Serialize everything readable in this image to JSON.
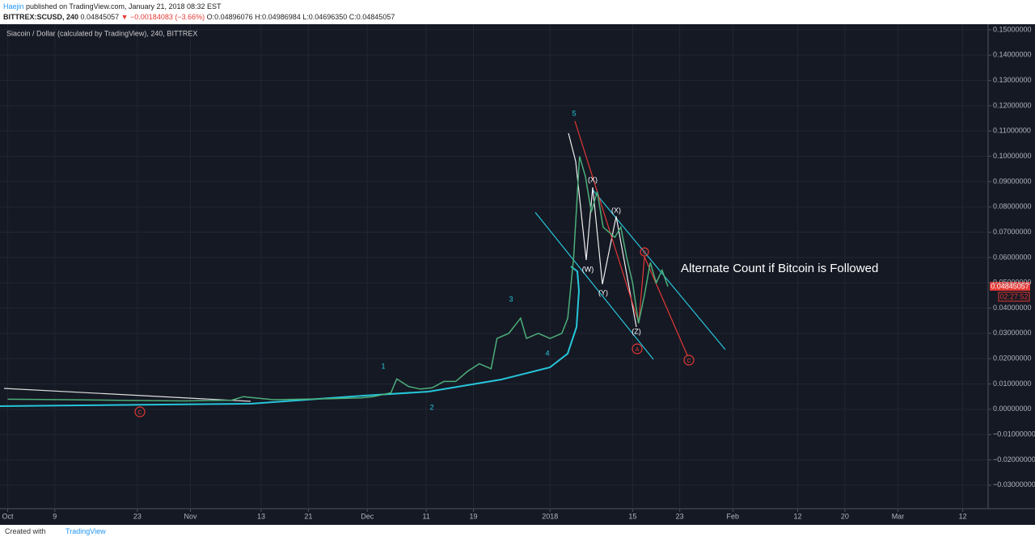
{
  "header": {
    "author": "Haejin",
    "published": "published on TradingView.com, January 21, 2018 08:32 EST",
    "symbol": "BITTREX:SCUSD, 240",
    "price": "0.04845057",
    "change": "▼ −0.00184083 (−3.66%)",
    "ohlc": "O:0.04896076 H:0.04986984 L:0.04696350 C:0.04845057"
  },
  "footer": {
    "created": "Created with",
    "brand": "TradingView"
  },
  "chart_data": {
    "type": "line",
    "title": "Siacoin / Dollar (calculated by TradingView), 240, BITTREX",
    "annotation": "Alternate Count if Bitcoin is Followed",
    "wave_labels": [
      "1",
      "2",
      "3",
      "4",
      "5",
      "(W)",
      "(X)",
      "(Y)",
      "(X)",
      "(Z)",
      "C",
      "A",
      "C",
      "B"
    ],
    "last_price": "0.04845057",
    "countdown": "02:27:52",
    "xlim": [
      -1.3,
      166.3
    ],
    "xticks": [
      {
        "value": 0,
        "label": "Oct"
      },
      {
        "value": 8,
        "label": "9"
      },
      {
        "value": 22,
        "label": "23"
      },
      {
        "value": 31,
        "label": "Nov"
      },
      {
        "value": 43,
        "label": "13"
      },
      {
        "value": 51,
        "label": "21"
      },
      {
        "value": 61,
        "label": "Dec"
      },
      {
        "value": 71,
        "label": "11"
      },
      {
        "value": 79,
        "label": "19"
      },
      {
        "value": 92,
        "label": "2018"
      },
      {
        "value": 106,
        "label": "15"
      },
      {
        "value": 114,
        "label": "23"
      },
      {
        "value": 123,
        "label": "Feb"
      },
      {
        "value": 134,
        "label": "12"
      },
      {
        "value": 142,
        "label": "20"
      },
      {
        "value": 151,
        "label": "Mar"
      },
      {
        "value": 162,
        "label": "12"
      }
    ],
    "ylim": [
      -0.0393,
      0.1522
    ],
    "yticks": [
      {
        "value": 0.15,
        "label": "0.15000000"
      },
      {
        "value": 0.14,
        "label": "0.14000000"
      },
      {
        "value": 0.13,
        "label": "0.13000000"
      },
      {
        "value": 0.12,
        "label": "0.12000000"
      },
      {
        "value": 0.11,
        "label": "0.11000000"
      },
      {
        "value": 0.1,
        "label": "0.10000000"
      },
      {
        "value": 0.09,
        "label": "0.09000000"
      },
      {
        "value": 0.08,
        "label": "0.08000000"
      },
      {
        "value": 0.07,
        "label": "0.07000000"
      },
      {
        "value": 0.06,
        "label": "0.06000000"
      },
      {
        "value": 0.05,
        "label": "0.05000000"
      },
      {
        "value": 0.04,
        "label": "0.04000000"
      },
      {
        "value": 0.03,
        "label": "0.03000000"
      },
      {
        "value": 0.02,
        "label": "0.02000000"
      },
      {
        "value": 0.01,
        "label": "0.01000000"
      },
      {
        "value": 0,
        "label": "0.00000000"
      },
      {
        "value": -0.01,
        "label": "−0.01000000"
      },
      {
        "value": -0.02,
        "label": "−0.02000000"
      },
      {
        "value": -0.03,
        "label": "−0.03000000"
      }
    ],
    "grid": true,
    "x": [
      0,
      10,
      20,
      30,
      38,
      40,
      45,
      55,
      60,
      62,
      65,
      66,
      68,
      70,
      72,
      74,
      76,
      78,
      80,
      82,
      83,
      85,
      87,
      88,
      90,
      92,
      94,
      95,
      96,
      97,
      98,
      99,
      100,
      101,
      103,
      104,
      105,
      106,
      107,
      108,
      109,
      110,
      111,
      112
    ],
    "series": [
      {
        "color": "#4caf7a",
        "values": [
          0.004,
          0.0038,
          0.0035,
          0.0033,
          0.0036,
          0.005,
          0.0038,
          0.0042,
          0.0045,
          0.005,
          0.0065,
          0.012,
          0.009,
          0.008,
          0.0085,
          0.011,
          0.011,
          0.015,
          0.018,
          0.016,
          0.028,
          0.03,
          0.036,
          0.028,
          0.03,
          0.028,
          0.03,
          0.036,
          0.06,
          0.1,
          0.092,
          0.078,
          0.086,
          0.072,
          0.068,
          0.072,
          0.06,
          0.05,
          0.034,
          0.045,
          0.058,
          0.05,
          0.055,
          0.0485
        ]
      }
    ]
  }
}
